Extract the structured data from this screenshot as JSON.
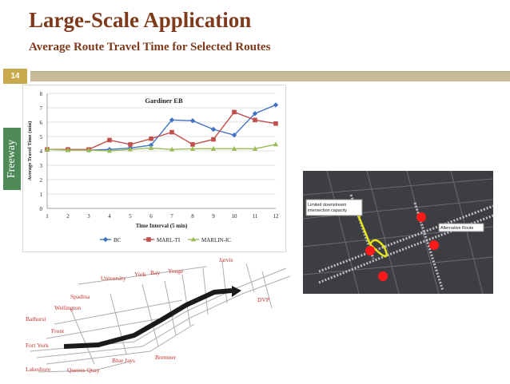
{
  "slide": {
    "title": "Large-Scale Application",
    "subtitle": "Average Route Travel Time for Selected Routes",
    "page_number": "14",
    "sidebar_label": "Freeway"
  },
  "colors": {
    "title": "#7f3a1b",
    "rule": "#c8bc98",
    "page_badge": "#c8a94c",
    "sidebar": "#4e8a58",
    "bc": "#4472c4",
    "marl": "#c0504d",
    "marlin": "#9bbb59"
  },
  "chart_data": {
    "type": "line",
    "title": "Gardiner EB",
    "xlabel": "Time Interval (5 min)",
    "ylabel": "Average Travel Time (min)",
    "x": [
      1,
      2,
      3,
      4,
      5,
      6,
      7,
      8,
      9,
      10,
      11,
      12
    ],
    "ylim": [
      0,
      8
    ],
    "yticks": [
      0,
      1,
      2,
      3,
      4,
      5,
      6,
      7,
      8
    ],
    "grid": true,
    "legend": "bottom",
    "series": [
      {
        "name": "BC",
        "color": "#4472c4",
        "marker": "diamond",
        "values": [
          4.1,
          4.1,
          4.05,
          4.1,
          4.2,
          4.4,
          6.15,
          6.1,
          5.5,
          5.1,
          6.6,
          7.2
        ]
      },
      {
        "name": "MARL-TI",
        "color": "#c0504d",
        "marker": "square",
        "values": [
          4.1,
          4.1,
          4.1,
          4.75,
          4.45,
          4.85,
          5.3,
          4.45,
          4.8,
          6.7,
          6.15,
          5.9
        ]
      },
      {
        "name": "MARLIN-IC",
        "color": "#9bbb59",
        "marker": "triangle",
        "values": [
          4.1,
          4.05,
          4.05,
          4.0,
          4.1,
          4.2,
          4.1,
          4.15,
          4.15,
          4.15,
          4.15,
          4.45
        ]
      }
    ]
  },
  "map_left": {
    "labels": [
      "Jarvis",
      "University",
      "York",
      "Bay",
      "Yonge",
      "Spadina",
      "DVP",
      "Wellington",
      "Bathurst",
      "Front",
      "Fort York",
      "Blue Jays",
      "Bremner",
      "Lakeshore",
      "Queens Quay"
    ]
  },
  "map_right": {
    "callouts": [
      "Limited downstream intersection capacity",
      "Alternative Route"
    ]
  }
}
